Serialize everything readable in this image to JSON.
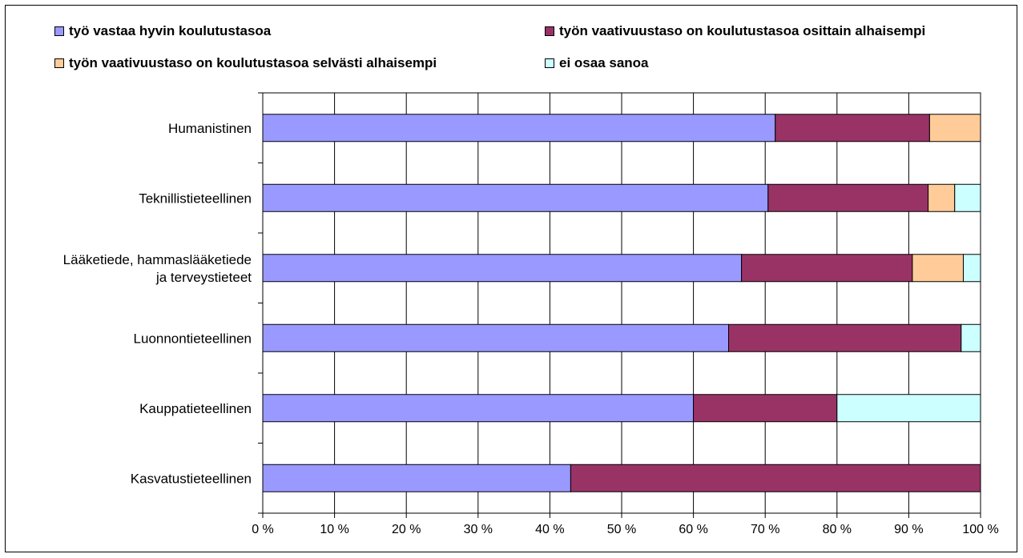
{
  "chart_data": {
    "type": "bar",
    "orientation": "horizontal",
    "stacked": "percent",
    "categories": [
      "Humanistinen",
      "Teknillistieteellinen",
      "Lääketiede, hammaslääketiede ja terveystieteet",
      "Luonnontieteellinen",
      "Kauppatieteellinen",
      "Kasvatustieteellinen"
    ],
    "category_lines": [
      [
        "Humanistinen"
      ],
      [
        "Teknillistieteellinen"
      ],
      [
        "Lääketiede, hammaslääketiede",
        "ja terveystieteet"
      ],
      [
        "Luonnontieteellinen"
      ],
      [
        "Kauppatieteellinen"
      ],
      [
        "Kasvatustieteellinen"
      ]
    ],
    "series": [
      {
        "name": "työ vastaa hyvin koulutustasoa",
        "color": "#9999ff",
        "values": [
          71.4,
          70.4,
          66.7,
          64.9,
          60.0,
          42.9
        ]
      },
      {
        "name": "työn vaativuustaso on koulutustasoa osittain alhaisempi",
        "color": "#993366",
        "values": [
          21.5,
          22.3,
          23.8,
          32.4,
          20.0,
          57.1
        ]
      },
      {
        "name": "työn vaativuustaso on koulutustasoa selvästi alhaisempi",
        "color": "#ffcc99",
        "values": [
          7.1,
          3.7,
          7.1,
          0,
          0,
          0
        ]
      },
      {
        "name": "ei osaa sanoa",
        "color": "#ccffff",
        "values": [
          0,
          3.6,
          2.4,
          2.7,
          20.0,
          0
        ]
      }
    ],
    "xlim": [
      0,
      100
    ],
    "xticks": [
      "0 %",
      "10 %",
      "20 %",
      "30 %",
      "40 %",
      "50 %",
      "60 %",
      "70 %",
      "80 %",
      "90 %",
      "100 %"
    ],
    "grid": true,
    "legend_position": "top",
    "title": "",
    "xlabel": "",
    "ylabel": ""
  }
}
